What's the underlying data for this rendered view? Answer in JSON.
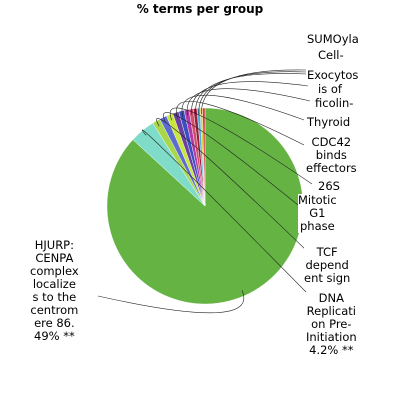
{
  "chart_data": {
    "type": "pie",
    "title": "% terms per group",
    "slices": [
      {
        "label": "HJURP:\nCENPA\ncomplex\nlocalize\ns to the\ncentrom\nere 86.\n49% **",
        "value": 86.49,
        "color": "#64b343"
      },
      {
        "label": "DNA\nReplicati\non Pre-\nInitiation\n4.2% **",
        "value": 4.2,
        "color": "#7fdcc8"
      },
      {
        "label": "TCF\ndepend\nent sign",
        "value": 1.3,
        "color": "#a9d64a"
      },
      {
        "label": "Mitotic\nG1\nphase",
        "value": 1.2,
        "color": "#5c6ccf"
      },
      {
        "label": "26S",
        "value": 1.1,
        "color": "#c8e63c"
      },
      {
        "label": "CDC42\nbinds\neffectors",
        "value": 1.0,
        "color": "#6b3fa0"
      },
      {
        "label": "Thyroid",
        "value": 0.9,
        "color": "#3a4fc4"
      },
      {
        "label": "ficolin-",
        "value": 0.8,
        "color": "#b23aa8"
      },
      {
        "label": "is of",
        "value": 0.7,
        "color": "#d4506a"
      },
      {
        "label": "Exocytos",
        "value": 0.6,
        "color": "#9a2040"
      },
      {
        "label": "Cell-",
        "value": 0.5,
        "color": "#4fb0d6"
      },
      {
        "label": "SUMOyla",
        "value": 0.4,
        "color": "#e0d040"
      },
      {
        "label": "",
        "value": 0.41,
        "color": "#d23c3c"
      }
    ]
  }
}
